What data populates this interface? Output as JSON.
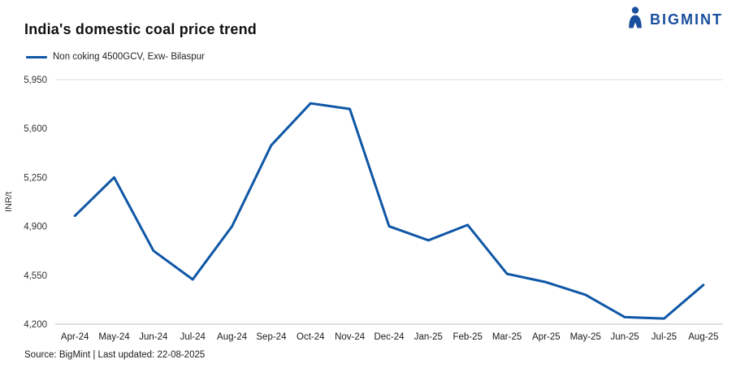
{
  "header": {
    "title": "India's domestic coal price trend",
    "logo_text": "BIGMINT"
  },
  "legend": {
    "label": "Non coking 4500GCV, Exw- Bilaspur"
  },
  "footer": {
    "source": "Source: BigMint | Last updated: 22-08-2025"
  },
  "colors": {
    "line": "#0F57A6",
    "brand": "#1A4F9E",
    "axis_text": "#333333",
    "category_text": "#1a1a1a",
    "grid_top": "#d9d9d9",
    "axis_line": "#bfbfbf"
  },
  "chart_data": {
    "type": "line",
    "title": "India's domestic coal price trend",
    "xlabel": "",
    "ylabel": "INR/t",
    "categories": [
      "Apr-24",
      "May-24",
      "Jun-24",
      "Jul-24",
      "Aug-24",
      "Sep-24",
      "Oct-24",
      "Nov-24",
      "Dec-24",
      "Jan-25",
      "Feb-25",
      "Mar-25",
      "Apr-25",
      "May-25",
      "Jun-25",
      "Jul-25",
      "Aug-25"
    ],
    "series": [
      {
        "name": "Non coking 4500GCV, Exw- Bilaspur",
        "values": [
          4975,
          5250,
          4725,
          4520,
          4900,
          5480,
          5780,
          5740,
          4900,
          4800,
          4910,
          4560,
          4500,
          4410,
          4250,
          4240,
          4480
        ]
      }
    ],
    "ylim": [
      4200,
      5950
    ],
    "yticks": [
      4200,
      4550,
      4900,
      5250,
      5600,
      5950
    ],
    "grid": "top-gridline-and-bottom-axis-only",
    "legend_position": "top-left"
  }
}
